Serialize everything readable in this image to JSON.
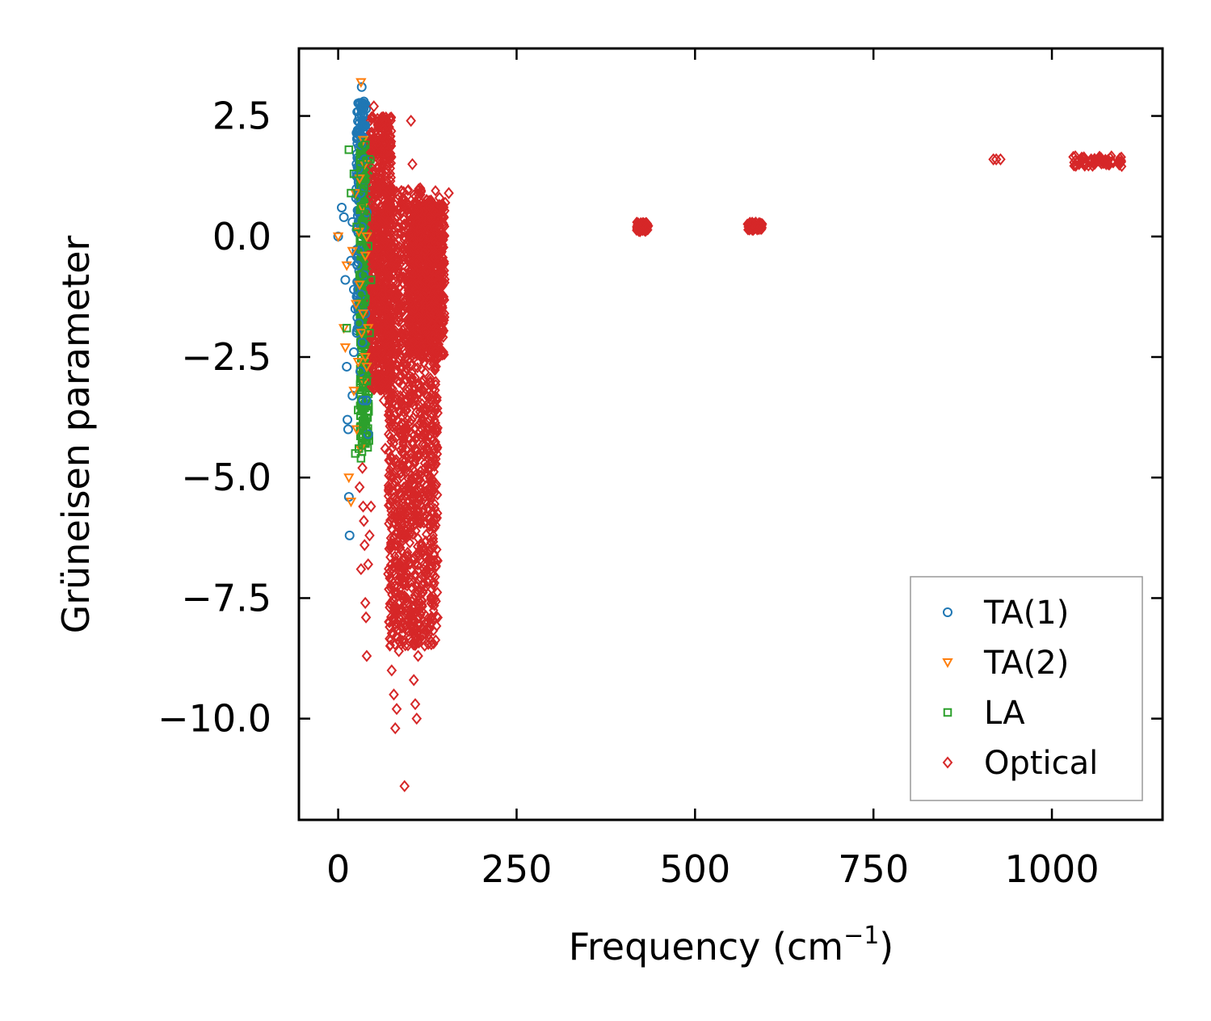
{
  "chart_data": {
    "type": "scatter",
    "title": "",
    "xlabel": "Frequency (cm",
    "xlabel_sup": "−1",
    "xlabel_close": ")",
    "ylabel": "Grüneisen parameter",
    "xlim": [
      -55,
      1155
    ],
    "ylim": [
      -12.1,
      3.9
    ],
    "xticks": [
      0,
      250,
      500,
      750,
      1000
    ],
    "xtick_labels": [
      "0",
      "250",
      "500",
      "750",
      "1000"
    ],
    "yticks": [
      2.5,
      0.0,
      -2.5,
      -5.0,
      -7.5,
      -10.0
    ],
    "ytick_labels": [
      "2.5",
      "0.0",
      "−2.5",
      "−5.0",
      "−7.5",
      "−10.0"
    ],
    "grid": false,
    "legend_position": "lower-right",
    "series": [
      {
        "name": "TA(1)",
        "label": "TA(1)",
        "marker": "circle",
        "color": "#1f77b4",
        "points": [
          [
            0,
            0.0
          ],
          [
            5,
            0.6
          ],
          [
            8,
            0.4
          ],
          [
            10,
            -0.9
          ],
          [
            12,
            -2.7
          ],
          [
            13,
            -3.8
          ],
          [
            14,
            -4.0
          ],
          [
            15,
            -5.4
          ],
          [
            16,
            -6.2
          ],
          [
            18,
            -0.5
          ],
          [
            20,
            -3.3
          ],
          [
            20,
            0.3
          ],
          [
            22,
            -1.1
          ],
          [
            22,
            -2.4
          ],
          [
            24,
            -1.5
          ],
          [
            25,
            0.8
          ],
          [
            26,
            -2.0
          ],
          [
            27,
            -0.6
          ],
          [
            28,
            1.4
          ],
          [
            29,
            -1.8
          ],
          [
            30,
            2.1
          ],
          [
            30,
            -0.3
          ],
          [
            31,
            0.9
          ],
          [
            31,
            -2.8
          ],
          [
            32,
            1.9
          ],
          [
            32,
            -1.2
          ],
          [
            33,
            3.1
          ],
          [
            33,
            0.2
          ],
          [
            34,
            2.5
          ],
          [
            34,
            -2.2
          ],
          [
            35,
            1.0
          ],
          [
            35,
            -3.4
          ],
          [
            36,
            2.8
          ],
          [
            36,
            -0.8
          ],
          [
            37,
            1.6
          ],
          [
            38,
            -1.6
          ],
          [
            38,
            2.3
          ],
          [
            40,
            0.5
          ],
          [
            40,
            -3.4
          ],
          [
            42,
            -4.1
          ]
        ]
      },
      {
        "name": "TA(2)",
        "label": "TA(2)",
        "marker": "triangle-down",
        "color": "#ff7f0e",
        "points": [
          [
            0,
            0.0
          ],
          [
            8,
            -1.9
          ],
          [
            10,
            -2.3
          ],
          [
            12,
            -0.6
          ],
          [
            15,
            -5.0
          ],
          [
            18,
            -5.5
          ],
          [
            20,
            -0.3
          ],
          [
            22,
            -3.2
          ],
          [
            24,
            0.9
          ],
          [
            25,
            -1.4
          ],
          [
            26,
            -4.0
          ],
          [
            28,
            -2.6
          ],
          [
            29,
            0.1
          ],
          [
            30,
            1.2
          ],
          [
            30,
            -1.0
          ],
          [
            31,
            -4.4
          ],
          [
            32,
            3.2
          ],
          [
            33,
            -2.0
          ],
          [
            34,
            0.6
          ],
          [
            35,
            2.0
          ],
          [
            35,
            -1.6
          ],
          [
            36,
            -3.0
          ],
          [
            37,
            1.5
          ],
          [
            38,
            -0.4
          ],
          [
            38,
            -2.5
          ],
          [
            40,
            0.0
          ],
          [
            40,
            -2.7
          ],
          [
            42,
            -1.9
          ]
        ]
      },
      {
        "name": "LA",
        "label": "LA",
        "marker": "square",
        "color": "#2ca02c",
        "points": [
          [
            12,
            -1.9
          ],
          [
            15,
            1.8
          ],
          [
            18,
            0.9
          ],
          [
            22,
            1.3
          ],
          [
            24,
            -4.5
          ],
          [
            26,
            0.2
          ],
          [
            28,
            -3.6
          ],
          [
            29,
            -4.4
          ],
          [
            30,
            -0.8
          ],
          [
            31,
            1.5
          ],
          [
            32,
            -4.6
          ],
          [
            33,
            0.6
          ],
          [
            34,
            -2.9
          ],
          [
            35,
            -4.0
          ],
          [
            36,
            1.0
          ],
          [
            38,
            -1.3
          ],
          [
            38,
            1.9
          ],
          [
            40,
            -3.0
          ],
          [
            40,
            0.4
          ],
          [
            42,
            -0.2
          ],
          [
            44,
            -2.0
          ],
          [
            45,
            1.6
          ],
          [
            46,
            -0.9
          ]
        ]
      },
      {
        "name": "Optical",
        "label": "Optical",
        "marker": "diamond",
        "color": "#d62728",
        "points": [
          [
            30,
            -5.2
          ],
          [
            32,
            -6.9
          ],
          [
            34,
            -4.8
          ],
          [
            35,
            -5.6
          ],
          [
            36,
            -5.9
          ],
          [
            37,
            -6.4
          ],
          [
            38,
            -7.6
          ],
          [
            39,
            -7.9
          ],
          [
            40,
            -8.7
          ],
          [
            42,
            -6.8
          ],
          [
            44,
            -6.2
          ],
          [
            46,
            -5.6
          ],
          [
            50,
            2.7
          ],
          [
            55,
            1.7
          ],
          [
            60,
            0.6
          ],
          [
            62,
            -1.2
          ],
          [
            64,
            -3.4
          ],
          [
            66,
            -4.4
          ],
          [
            70,
            -7.0
          ],
          [
            72,
            -8.0
          ],
          [
            75,
            -9.0
          ],
          [
            78,
            -9.5
          ],
          [
            80,
            -10.2
          ],
          [
            82,
            -9.8
          ],
          [
            85,
            -8.6
          ],
          [
            90,
            -7.2
          ],
          [
            93,
            -11.4
          ],
          [
            95,
            -6.1
          ],
          [
            100,
            -5.3
          ],
          [
            102,
            2.4
          ],
          [
            104,
            1.5
          ],
          [
            106,
            -9.2
          ],
          [
            108,
            -9.7
          ],
          [
            110,
            -10.0
          ],
          [
            112,
            -8.7
          ],
          [
            115,
            1.0
          ],
          [
            118,
            0.4
          ],
          [
            122,
            -0.3
          ],
          [
            128,
            -1.5
          ],
          [
            135,
            0.5
          ],
          [
            142,
            0.8
          ],
          [
            150,
            0.7
          ],
          [
            155,
            0.9
          ],
          [
            420,
            0.15
          ],
          [
            425,
            0.2
          ],
          [
            428,
            0.25
          ],
          [
            432,
            0.2
          ],
          [
            575,
            0.2
          ],
          [
            580,
            0.25
          ],
          [
            585,
            0.2
          ],
          [
            592,
            0.2
          ],
          [
            918,
            1.6
          ],
          [
            922,
            1.6
          ],
          [
            928,
            1.6
          ],
          [
            1030,
            1.65
          ],
          [
            1045,
            1.62
          ],
          [
            1055,
            1.6
          ],
          [
            1065,
            1.58
          ],
          [
            1075,
            1.57
          ],
          [
            1085,
            1.55
          ],
          [
            1095,
            1.5
          ]
        ]
      }
    ],
    "dense_regions": [
      {
        "series": "TA(1)",
        "x_range": [
          25,
          40
        ],
        "y_range": [
          -2.0,
          2.8
        ]
      },
      {
        "series": "LA",
        "x_range": [
          30,
          44
        ],
        "y_range": [
          -4.5,
          2.0
        ]
      },
      {
        "series": "Optical",
        "x_range": [
          45,
          75
        ],
        "y_range": [
          -3.2,
          2.5
        ]
      },
      {
        "series": "Optical",
        "x_range": [
          70,
          140
        ],
        "y_range": [
          -8.5,
          1.0
        ]
      },
      {
        "series": "Optical",
        "x_range": [
          100,
          150
        ],
        "y_range": [
          -2.5,
          0.7
        ]
      },
      {
        "series": "Optical",
        "x_range": [
          418,
          435
        ],
        "y_range": [
          0.1,
          0.3
        ]
      },
      {
        "series": "Optical",
        "x_range": [
          572,
          595
        ],
        "y_range": [
          0.12,
          0.3
        ]
      },
      {
        "series": "Optical",
        "x_range": [
          1030,
          1098
        ],
        "y_range": [
          1.45,
          1.68
        ]
      }
    ]
  }
}
